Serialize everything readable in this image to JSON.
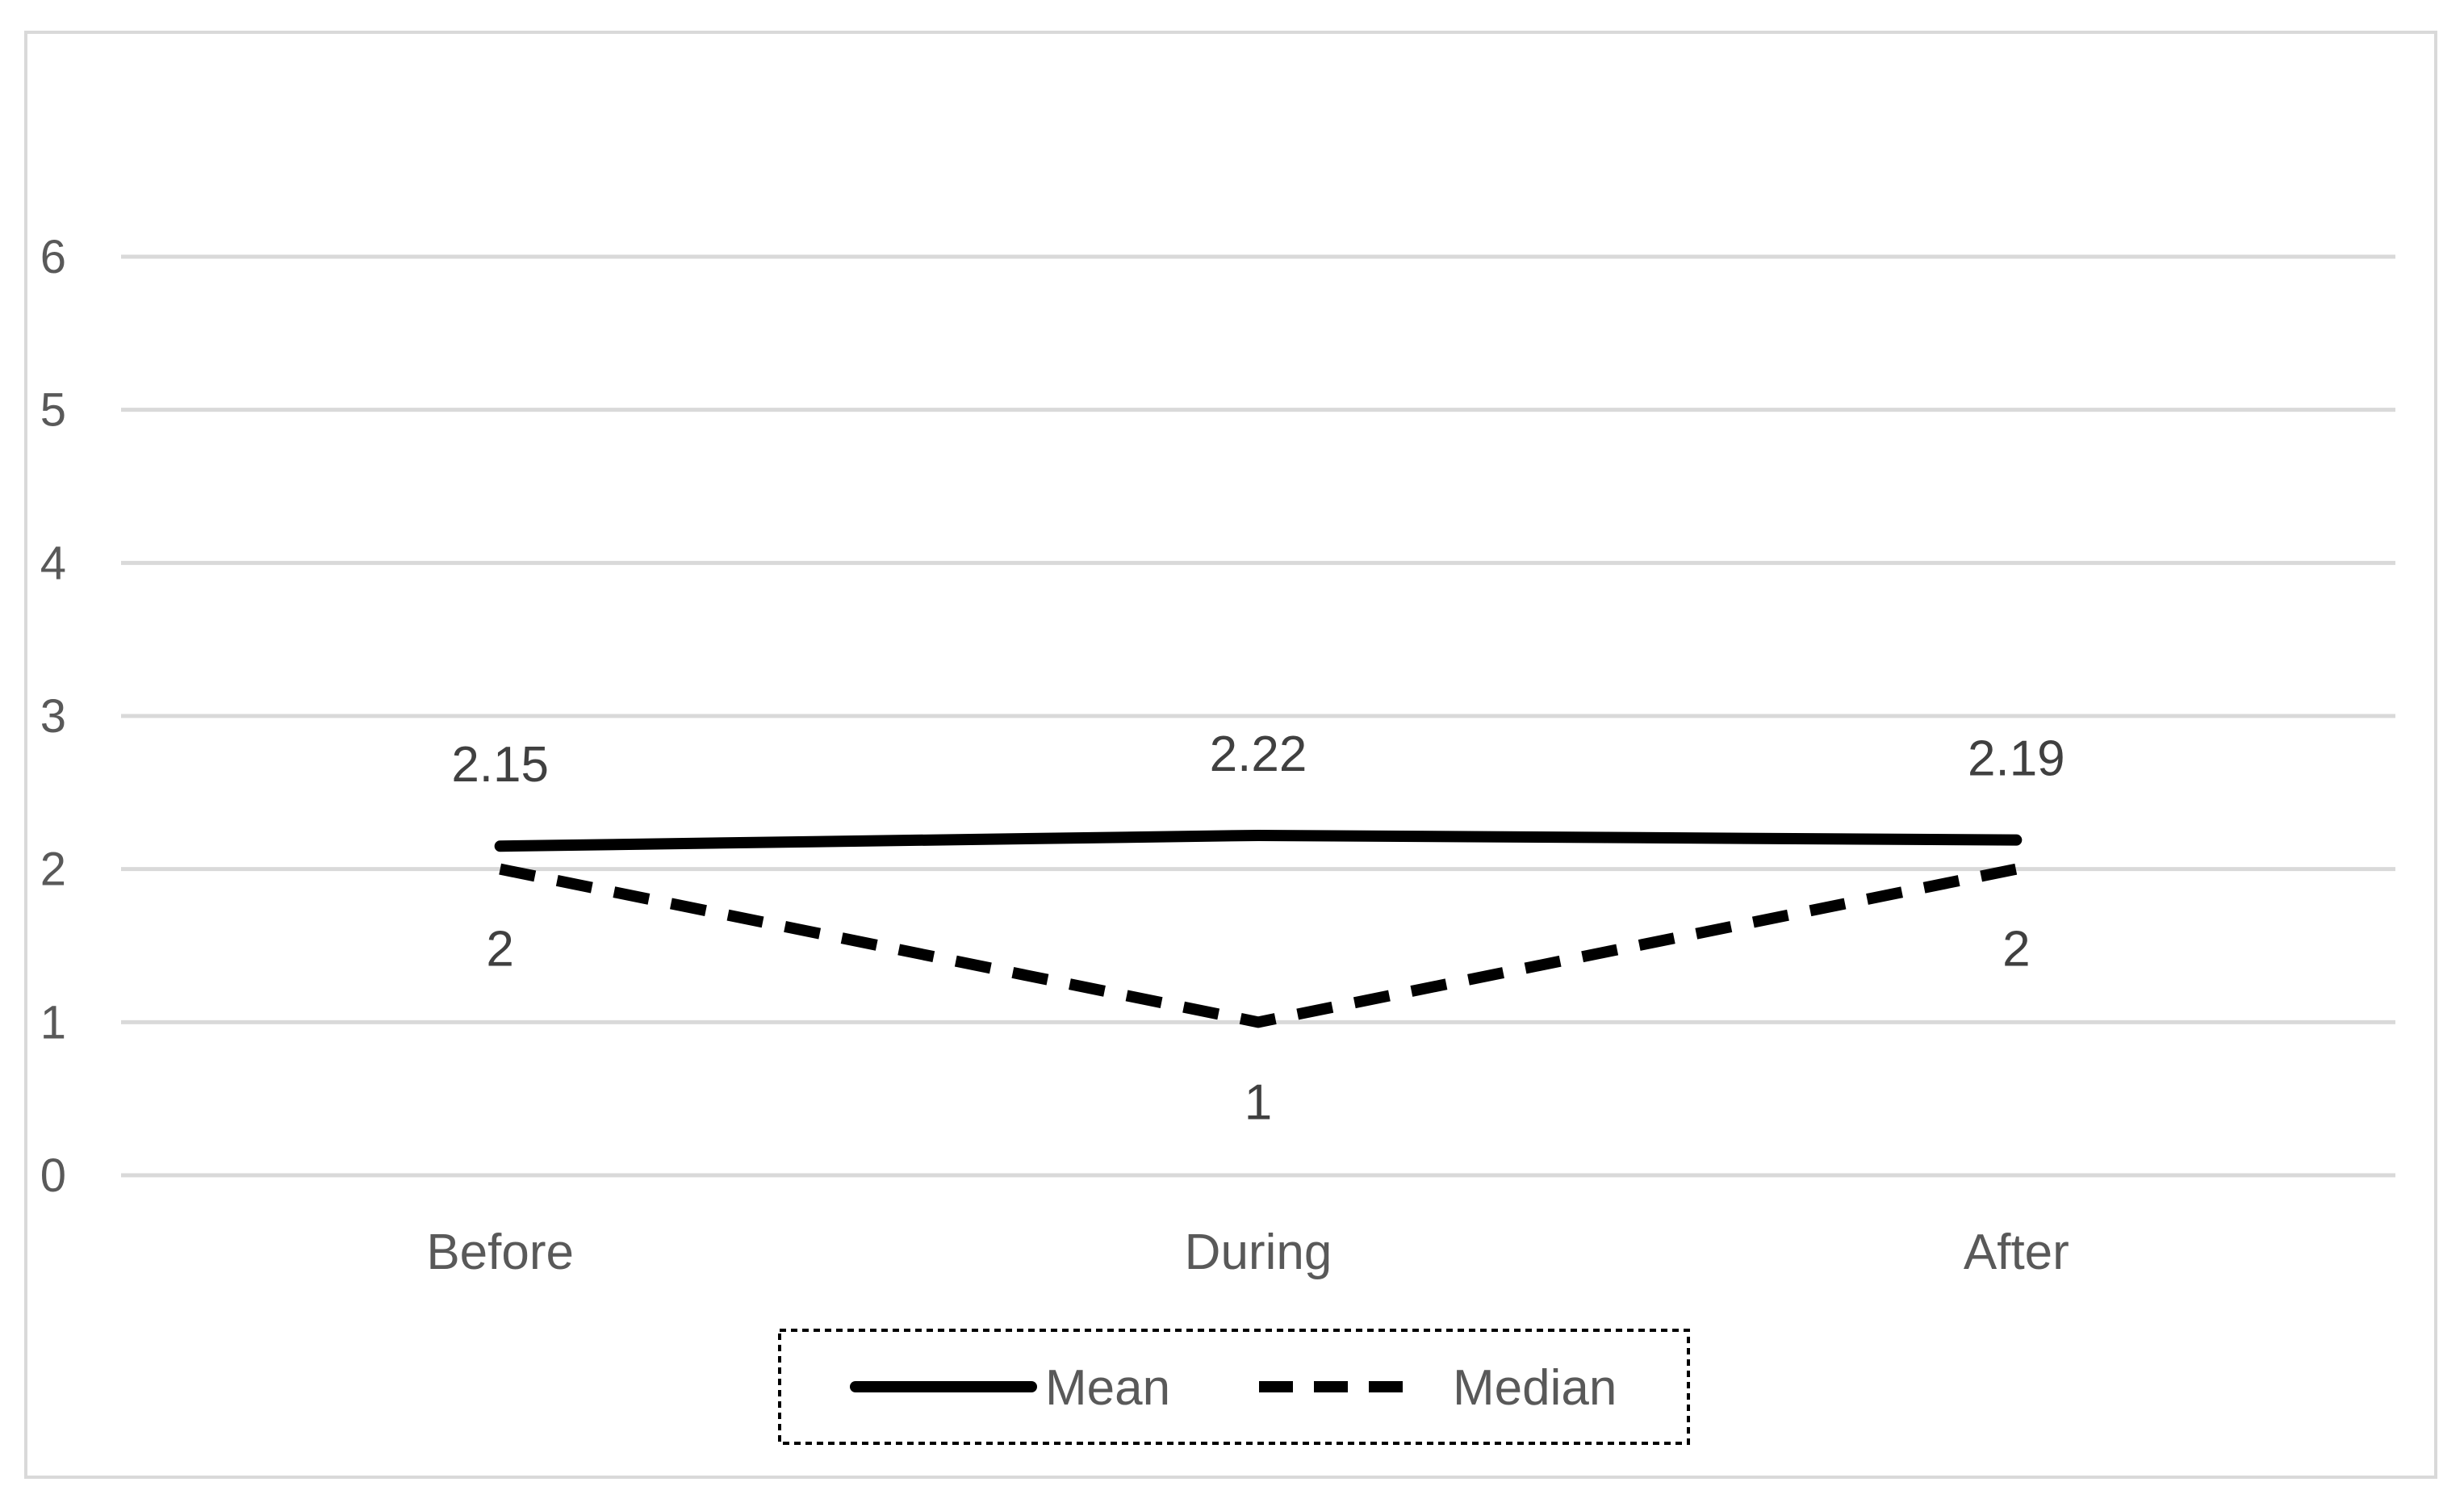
{
  "chart_data": {
    "type": "line",
    "title": "",
    "xlabel": "",
    "ylabel": "",
    "categories": [
      "Before",
      "During",
      "After"
    ],
    "ylim": [
      0,
      6
    ],
    "yticks": [
      0,
      1,
      2,
      3,
      4,
      5,
      6
    ],
    "grid": true,
    "legend": "bottom",
    "series": [
      {
        "name": "Mean",
        "values": [
          2.15,
          2.22,
          2.19
        ],
        "data_labels": [
          "2.15",
          "2.22",
          "2.19"
        ],
        "label_position": "above",
        "line_style": "solid",
        "color": "#000000"
      },
      {
        "name": "Median",
        "values": [
          2,
          1,
          2
        ],
        "data_labels": [
          "2",
          "1",
          "2"
        ],
        "label_position": "below",
        "line_style": "dashed",
        "color": "#000000"
      }
    ]
  },
  "colors": {
    "gridline": "#d9d9d9",
    "frame": "#d9d9d9",
    "text": "#595959"
  }
}
